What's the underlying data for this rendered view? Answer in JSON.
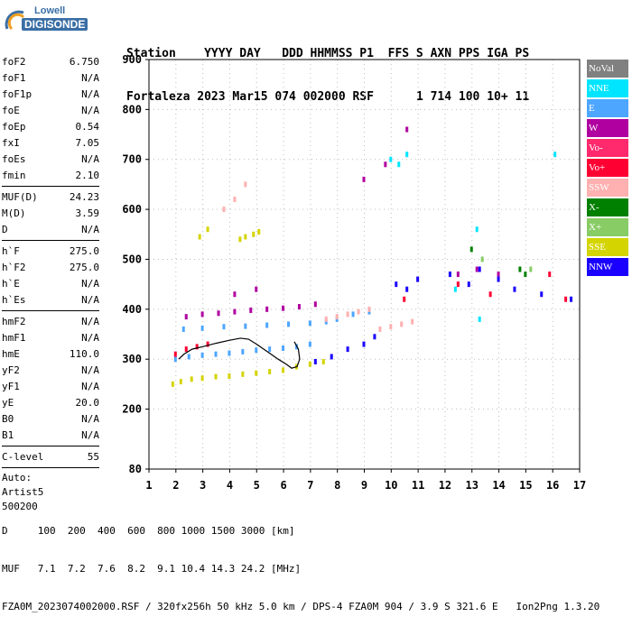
{
  "logo": {
    "line1": "Lowell",
    "line2": "DIGISONDE"
  },
  "header": {
    "row1": [
      "Station",
      "YYYY DAY",
      "DDD HHMMSS P1",
      "FFS S AXN PPS IGA PS"
    ],
    "row2": [
      "Fortaleza",
      "2023 Mar15",
      "074 002000 RSF",
      "1 714 100 10+ 11"
    ]
  },
  "params_group1": [
    {
      "label": "foF2",
      "value": "6.750"
    },
    {
      "label": "foF1",
      "value": "N/A"
    },
    {
      "label": "foF1p",
      "value": "N/A"
    },
    {
      "label": "foE",
      "value": "N/A"
    },
    {
      "label": "foEp",
      "value": "0.54"
    },
    {
      "label": "fxI",
      "value": "7.05"
    },
    {
      "label": "foEs",
      "value": "N/A"
    },
    {
      "label": "fmin",
      "value": "2.10"
    }
  ],
  "params_group2": [
    {
      "label": "MUF(D)",
      "value": "24.23"
    },
    {
      "label": "M(D)",
      "value": "3.59"
    },
    {
      "label": "D",
      "value": "N/A"
    }
  ],
  "params_group3": [
    {
      "label": "h`F",
      "value": "275.0"
    },
    {
      "label": "h`F2",
      "value": "275.0"
    },
    {
      "label": "h`E",
      "value": "N/A"
    },
    {
      "label": "h`Es",
      "value": "N/A"
    }
  ],
  "params_group4": [
    {
      "label": "hmF2",
      "value": "N/A"
    },
    {
      "label": "hmF1",
      "value": "N/A"
    },
    {
      "label": "hmE",
      "value": "110.0"
    },
    {
      "label": "yF2",
      "value": "N/A"
    },
    {
      "label": "yF1",
      "value": "N/A"
    },
    {
      "label": "yE",
      "value": "20.0"
    },
    {
      "label": "B0",
      "value": "N/A"
    },
    {
      "label": "B1",
      "value": "N/A"
    }
  ],
  "params_group5": [
    {
      "label": "C-level",
      "value": "55"
    }
  ],
  "auto": {
    "line1": "Auto:",
    "line2": "Artist5",
    "line3": "500200"
  },
  "legend": [
    {
      "label": "NoVal",
      "color": "#808080"
    },
    {
      "label": "NNE",
      "color": "#00e5ff"
    },
    {
      "label": "E",
      "color": "#4da6ff"
    },
    {
      "label": "W",
      "color": "#b000a0"
    },
    {
      "label": "Vo-",
      "color": "#ff2a6d"
    },
    {
      "label": "Vo+",
      "color": "#ff0033"
    },
    {
      "label": "SSW",
      "color": "#ffb0b0"
    },
    {
      "label": "X-",
      "color": "#008000"
    },
    {
      "label": "X+",
      "color": "#88cc66"
    },
    {
      "label": "SSE",
      "color": "#d4d400"
    },
    {
      "label": "NNW",
      "color": "#1a00ff"
    }
  ],
  "footer": {
    "d_row": "D     100  200  400  600  800 1000 1500 3000 [km]",
    "muf_row": "MUF   7.1  7.2  7.6  8.2  9.1 10.4 14.3 24.2 [MHz]",
    "info_row": "FZA0M_2023074002000.RSF / 320fx256h 50 kHz 5.0 km / DPS-4 FZA0M 904 / 3.9 S 321.6 E   Ion2Png 1.3.20"
  },
  "chart_data": {
    "type": "scatter",
    "xlim": [
      1,
      17
    ],
    "ylim": [
      80,
      900
    ],
    "xticks": [
      1,
      2,
      3,
      4,
      5,
      6,
      7,
      8,
      9,
      10,
      11,
      12,
      13,
      14,
      15,
      16,
      17
    ],
    "yticks": [
      80,
      200,
      300,
      400,
      500,
      600,
      700,
      800,
      900
    ],
    "grid": true,
    "legend_position": "right",
    "series": [
      {
        "name": "SSE",
        "color": "#d4d400",
        "points": [
          [
            1.9,
            250
          ],
          [
            2.2,
            255
          ],
          [
            2.6,
            260
          ],
          [
            3.0,
            262
          ],
          [
            3.5,
            265
          ],
          [
            4.0,
            266
          ],
          [
            4.5,
            270
          ],
          [
            5.0,
            272
          ],
          [
            5.5,
            275
          ],
          [
            6.0,
            278
          ],
          [
            6.5,
            285
          ],
          [
            7.0,
            290
          ],
          [
            7.5,
            295
          ],
          [
            2.9,
            545
          ],
          [
            3.2,
            560
          ],
          [
            4.4,
            540
          ],
          [
            4.6,
            545
          ],
          [
            4.9,
            550
          ],
          [
            5.1,
            555
          ]
        ]
      },
      {
        "name": "E",
        "color": "#4da6ff",
        "points": [
          [
            2.0,
            300
          ],
          [
            2.5,
            305
          ],
          [
            3.0,
            308
          ],
          [
            3.5,
            310
          ],
          [
            4.0,
            312
          ],
          [
            4.5,
            315
          ],
          [
            5.0,
            318
          ],
          [
            5.5,
            320
          ],
          [
            6.0,
            322
          ],
          [
            6.5,
            325
          ],
          [
            7.0,
            330
          ],
          [
            2.3,
            360
          ],
          [
            3.0,
            362
          ],
          [
            3.8,
            365
          ],
          [
            4.6,
            366
          ],
          [
            5.4,
            368
          ],
          [
            6.2,
            370
          ],
          [
            7.0,
            372
          ],
          [
            7.6,
            375
          ],
          [
            8.0,
            380
          ],
          [
            8.6,
            390
          ],
          [
            9.2,
            395
          ]
        ]
      },
      {
        "name": "W",
        "color": "#b000a0",
        "points": [
          [
            2.4,
            385
          ],
          [
            3.0,
            390
          ],
          [
            3.6,
            392
          ],
          [
            4.2,
            395
          ],
          [
            4.8,
            398
          ],
          [
            5.4,
            400
          ],
          [
            6.0,
            402
          ],
          [
            6.6,
            405
          ],
          [
            7.2,
            410
          ],
          [
            4.2,
            430
          ],
          [
            5.0,
            440
          ],
          [
            9.0,
            660
          ],
          [
            9.8,
            690
          ],
          [
            10.6,
            760
          ],
          [
            12.5,
            470
          ],
          [
            13.2,
            480
          ],
          [
            14.0,
            470
          ]
        ]
      },
      {
        "name": "SSW",
        "color": "#ffb0b0",
        "points": [
          [
            7.6,
            380
          ],
          [
            8.0,
            385
          ],
          [
            8.4,
            390
          ],
          [
            8.8,
            395
          ],
          [
            9.2,
            400
          ],
          [
            9.6,
            360
          ],
          [
            10.0,
            365
          ],
          [
            10.4,
            370
          ],
          [
            10.8,
            375
          ],
          [
            3.8,
            600
          ],
          [
            4.2,
            620
          ],
          [
            4.6,
            650
          ]
        ]
      },
      {
        "name": "NNW",
        "color": "#1a00ff",
        "points": [
          [
            7.2,
            295
          ],
          [
            7.8,
            305
          ],
          [
            8.4,
            320
          ],
          [
            9.0,
            330
          ],
          [
            9.4,
            345
          ],
          [
            10.2,
            450
          ],
          [
            10.6,
            440
          ],
          [
            11.0,
            460
          ],
          [
            12.2,
            470
          ],
          [
            12.9,
            450
          ],
          [
            13.3,
            480
          ],
          [
            14.0,
            460
          ],
          [
            14.6,
            440
          ],
          [
            15.6,
            430
          ],
          [
            16.7,
            420
          ]
        ]
      },
      {
        "name": "NNE",
        "color": "#00e5ff",
        "points": [
          [
            10.0,
            700
          ],
          [
            10.3,
            690
          ],
          [
            10.6,
            710
          ],
          [
            12.4,
            440
          ],
          [
            13.3,
            380
          ],
          [
            13.2,
            560
          ],
          [
            16.1,
            710
          ]
        ]
      },
      {
        "name": "Vo+",
        "color": "#ff0033",
        "points": [
          [
            2.0,
            310
          ],
          [
            2.4,
            320
          ],
          [
            2.8,
            325
          ],
          [
            3.2,
            330
          ],
          [
            10.5,
            420
          ],
          [
            12.5,
            450
          ],
          [
            13.7,
            430
          ],
          [
            15.9,
            470
          ],
          [
            16.5,
            420
          ]
        ]
      },
      {
        "name": "X-",
        "color": "#008000",
        "points": [
          [
            14.8,
            480
          ],
          [
            15.0,
            470
          ],
          [
            13.0,
            520
          ]
        ]
      },
      {
        "name": "X+",
        "color": "#88cc66",
        "points": [
          [
            15.2,
            480
          ],
          [
            13.4,
            500
          ]
        ]
      }
    ],
    "trace": {
      "name": "",
      "color": "#000000",
      "points": [
        [
          2.1,
          300
        ],
        [
          2.3,
          310
        ],
        [
          2.6,
          320
        ],
        [
          3.0,
          325
        ],
        [
          3.5,
          332
        ],
        [
          4.0,
          338
        ],
        [
          4.4,
          342
        ],
        [
          4.7,
          340
        ],
        [
          5.0,
          330
        ],
        [
          5.4,
          315
        ],
        [
          5.8,
          300
        ],
        [
          6.1,
          290
        ],
        [
          6.3,
          282
        ],
        [
          6.5,
          285
        ],
        [
          6.6,
          300
        ],
        [
          6.55,
          320
        ],
        [
          6.4,
          335
        ]
      ]
    }
  }
}
